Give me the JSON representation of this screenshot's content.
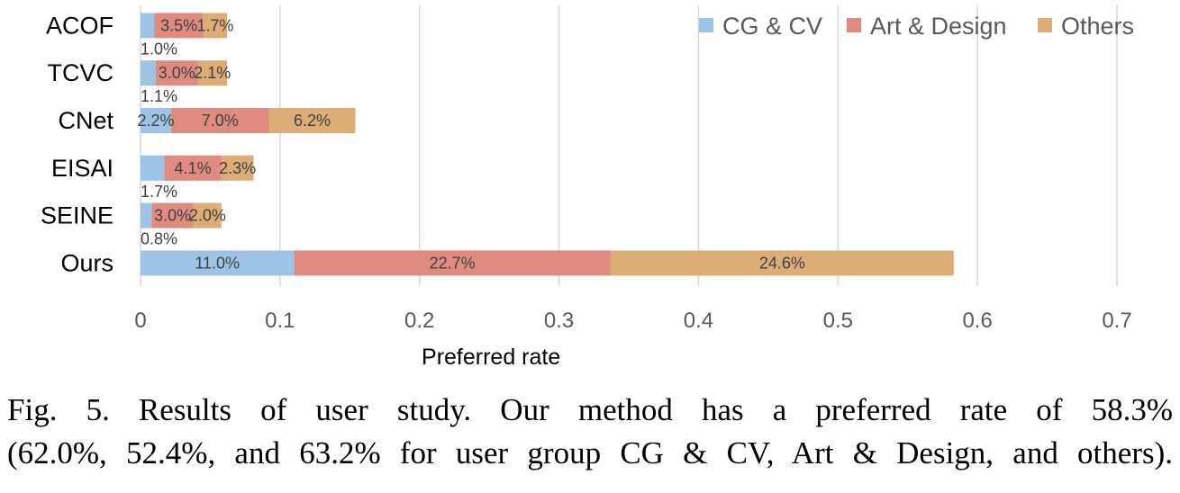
{
  "chart_data": {
    "type": "bar",
    "orientation": "horizontal",
    "stacked": true,
    "categories": [
      "ACOF",
      "TCVC",
      "CNet",
      "EISAI",
      "SEINE",
      "Ours"
    ],
    "series": [
      {
        "name": "CG & CV",
        "color": "#9dc3e6",
        "values": [
          0.01,
          0.011,
          0.022,
          0.017,
          0.008,
          0.11
        ],
        "labels": [
          "1.0%",
          "1.1%",
          "2.2%",
          "1.7%",
          "0.8%",
          "11.0%"
        ]
      },
      {
        "name": "Art & Design",
        "color": "#e08b80",
        "values": [
          0.035,
          0.03,
          0.07,
          0.041,
          0.03,
          0.227
        ],
        "labels": [
          "3.5%",
          "3.0%",
          "7.0%",
          "4.1%",
          "3.0%",
          "22.7%"
        ]
      },
      {
        "name": "Others",
        "color": "#ddad78",
        "values": [
          0.017,
          0.021,
          0.062,
          0.023,
          0.02,
          0.246
        ],
        "labels": [
          "1.7%",
          "2.1%",
          "6.2%",
          "2.3%",
          "2.0%",
          "24.6%"
        ]
      }
    ],
    "xlabel": "Preferred rate",
    "ylabel": "",
    "xlim": [
      0,
      0.7
    ],
    "xticks": [
      0,
      0.1,
      0.2,
      0.3,
      0.4,
      0.5,
      0.6,
      0.7
    ],
    "xtick_labels": [
      "0",
      "0.1",
      "0.2",
      "0.3",
      "0.4",
      "0.5",
      "0.6",
      "0.7"
    ],
    "grid": true,
    "legend_position": "top-right"
  },
  "caption": {
    "line1": "Fig. 5.  Results of user study. Our method has a preferred rate of 58.3%",
    "line2": "(62.0%, 52.4%, and 63.2% for user group CG & CV, Art & Design, and others)."
  }
}
